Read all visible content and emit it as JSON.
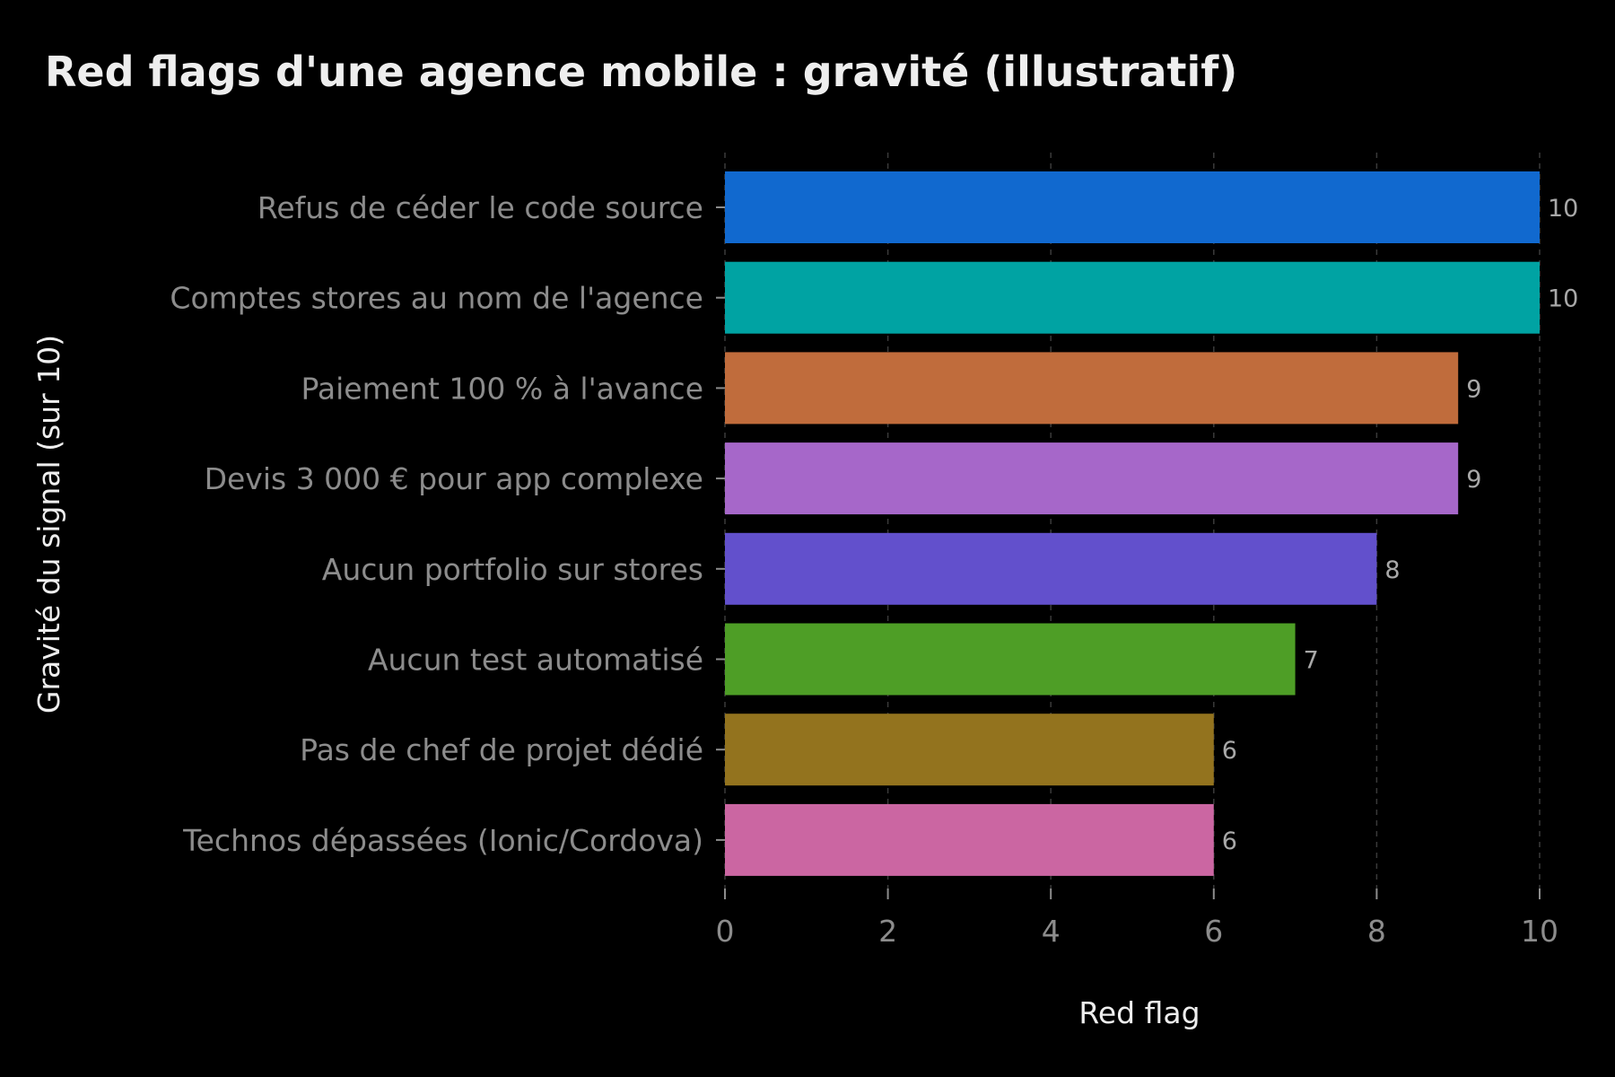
{
  "chart_data": {
    "type": "bar",
    "orientation": "horizontal",
    "title": "Red flags d'une agence mobile : gravité (illustratif)",
    "xlabel": "Red flag",
    "ylabel": "Gravité du signal (sur 10)",
    "categories": [
      "Refus de céder le code source",
      "Comptes stores au nom de l'agence",
      "Paiement 100 % à l'avance",
      "Devis 3 000 € pour app complexe",
      "Aucun portfolio sur stores",
      "Aucun test automatisé",
      "Pas de chef de projet dédié",
      "Technos dépassées (Ionic/Cordova)"
    ],
    "values": [
      10,
      10,
      9,
      9,
      8,
      7,
      6,
      6
    ],
    "colors": [
      "#1169cf",
      "#00a3a3",
      "#c06c3c",
      "#a667c9",
      "#6250cc",
      "#4e9e26",
      "#93731e",
      "#cb66a2"
    ],
    "xlim": [
      0,
      10
    ],
    "xticks": [
      "0",
      "2",
      "4",
      "6",
      "8",
      "10"
    ],
    "grid": true,
    "legend": "none",
    "background": "#000000"
  }
}
